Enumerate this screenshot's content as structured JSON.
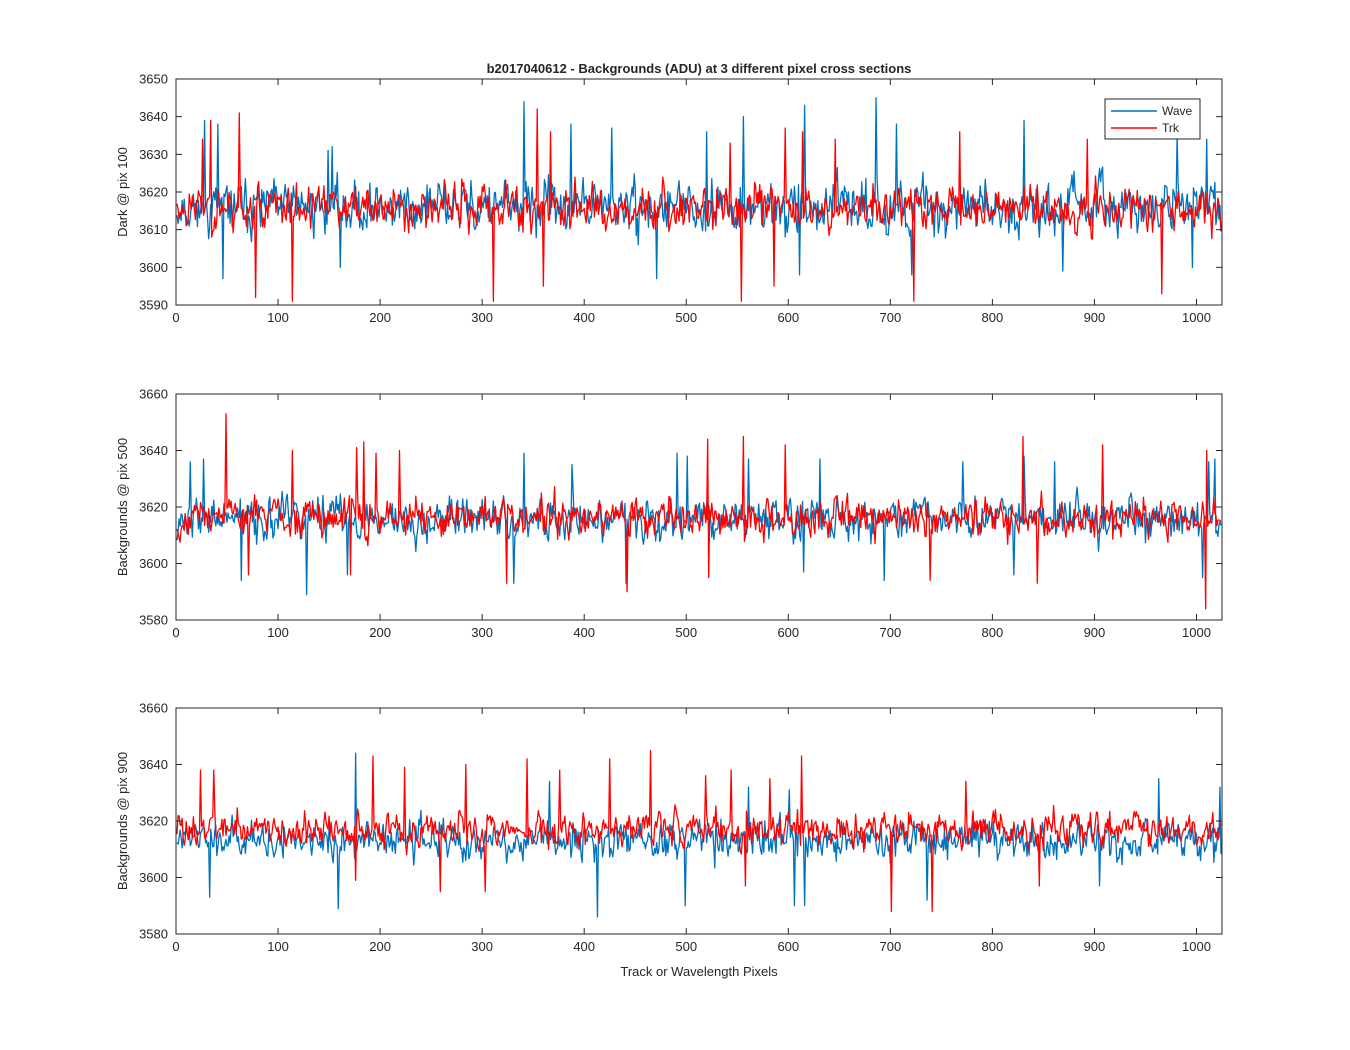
{
  "figure": {
    "title": "b2017040612 - Backgrounds (ADU) at 3 different pixel cross sections",
    "xlabel": "Track or Wavelength Pixels"
  },
  "legend": {
    "position": "top-right",
    "entries": [
      {
        "name": "Wave",
        "color": "#0072BD"
      },
      {
        "name": "Trk",
        "color": "#FF0000"
      }
    ]
  },
  "chart_data": [
    {
      "type": "line",
      "ylabel": "Dark @ pix 100",
      "xlim": [
        0,
        1025
      ],
      "ylim": [
        3590,
        3650
      ],
      "xticks": [
        0,
        100,
        200,
        300,
        400,
        500,
        600,
        700,
        800,
        900,
        1000
      ],
      "yticks": [
        3590,
        3600,
        3610,
        3620,
        3630,
        3640,
        3650
      ],
      "grid": false,
      "n_points": 1024,
      "series": [
        {
          "name": "Wave",
          "color": "#0072BD",
          "mean": 3616,
          "spread": 9,
          "seed": 11,
          "peaks": [
            [
              27,
              3639
            ],
            [
              40,
              3638
            ],
            [
              148,
              3631
            ],
            [
              152,
              3632
            ],
            [
              340,
              3644
            ],
            [
              386,
              3638
            ],
            [
              426,
              3637
            ],
            [
              519,
              3636
            ],
            [
              555,
              3640
            ],
            [
              615,
              3643
            ],
            [
              685,
              3645
            ],
            [
              705,
              3638
            ],
            [
              830,
              3639
            ],
            [
              980,
              3635
            ],
            [
              1009,
              3634
            ]
          ],
          "troughs": [
            [
              45,
              3597
            ],
            [
              160,
              3600
            ],
            [
              470,
              3597
            ],
            [
              610,
              3598
            ],
            [
              720,
              3598
            ],
            [
              868,
              3599
            ],
            [
              995,
              3600
            ]
          ]
        },
        {
          "name": "Trk",
          "color": "#FF0000",
          "mean": 3616,
          "spread": 8,
          "seed": 23,
          "peaks": [
            [
              25,
              3634
            ],
            [
              33,
              3639
            ],
            [
              61,
              3641
            ],
            [
              77,
              3639
            ],
            [
              353,
              3642
            ],
            [
              366,
              3636
            ],
            [
              542,
              3633
            ],
            [
              596,
              3637
            ],
            [
              613,
              3636
            ],
            [
              645,
              3634
            ],
            [
              722,
              3633
            ],
            [
              767,
              3636
            ],
            [
              892,
              3634
            ]
          ],
          "troughs": [
            [
              77,
              3592
            ],
            [
              113,
              3591
            ],
            [
              310,
              3591
            ],
            [
              359,
              3595
            ],
            [
              553,
              3591
            ],
            [
              585,
              3595
            ],
            [
              722,
              3591
            ],
            [
              965,
              3593
            ]
          ]
        }
      ]
    },
    {
      "type": "line",
      "ylabel": "Backgrounds @ pix 500",
      "xlim": [
        0,
        1025
      ],
      "ylim": [
        3580,
        3660
      ],
      "xticks": [
        0,
        100,
        200,
        300,
        400,
        500,
        600,
        700,
        800,
        900,
        1000
      ],
      "yticks": [
        3580,
        3600,
        3620,
        3640,
        3660
      ],
      "grid": false,
      "n_points": 1024,
      "series": [
        {
          "name": "Wave",
          "color": "#0072BD",
          "mean": 3616,
          "spread": 10,
          "seed": 37,
          "peaks": [
            [
              13,
              3636
            ],
            [
              26,
              3637
            ],
            [
              340,
              3639
            ],
            [
              387,
              3635
            ],
            [
              490,
              3639
            ],
            [
              500,
              3638
            ],
            [
              560,
              3637
            ],
            [
              630,
              3637
            ],
            [
              770,
              3636
            ],
            [
              830,
              3638
            ],
            [
              860,
              3636
            ],
            [
              1011,
              3636
            ],
            [
              1017,
              3637
            ]
          ],
          "troughs": [
            [
              63,
              3594
            ],
            [
              127,
              3589
            ],
            [
              167,
              3596
            ],
            [
              330,
              3593
            ],
            [
              440,
              3593
            ],
            [
              614,
              3597
            ],
            [
              693,
              3594
            ],
            [
              820,
              3596
            ],
            [
              1005,
              3595
            ]
          ]
        },
        {
          "name": "Trk",
          "color": "#FF0000",
          "mean": 3616,
          "spread": 9,
          "seed": 49,
          "peaks": [
            [
              48,
              3653
            ],
            [
              113,
              3640
            ],
            [
              176,
              3641
            ],
            [
              183,
              3643
            ],
            [
              195,
              3639
            ],
            [
              218,
              3640
            ],
            [
              520,
              3644
            ],
            [
              555,
              3645
            ],
            [
              596,
              3642
            ],
            [
              829,
              3645
            ],
            [
              907,
              3642
            ],
            [
              1009,
              3640
            ]
          ],
          "troughs": [
            [
              70,
              3596
            ],
            [
              170,
              3596
            ],
            [
              323,
              3593
            ],
            [
              441,
              3590
            ],
            [
              521,
              3595
            ],
            [
              738,
              3594
            ],
            [
              843,
              3593
            ],
            [
              1008,
              3584
            ]
          ]
        }
      ]
    },
    {
      "type": "line",
      "ylabel": "Backgrounds @ pix 900",
      "xlim": [
        0,
        1025
      ],
      "ylim": [
        3580,
        3660
      ],
      "xticks": [
        0,
        100,
        200,
        300,
        400,
        500,
        600,
        700,
        800,
        900,
        1000
      ],
      "yticks": [
        3580,
        3600,
        3620,
        3640,
        3660
      ],
      "grid": false,
      "n_points": 1024,
      "series": [
        {
          "name": "Wave",
          "color": "#0072BD",
          "mean": 3613,
          "spread": 9,
          "seed": 61,
          "peaks": [
            [
              175,
              3644
            ],
            [
              365,
              3634
            ],
            [
              412,
              3633
            ],
            [
              560,
              3632
            ],
            [
              600,
              3631
            ],
            [
              962,
              3635
            ],
            [
              1022,
              3632
            ]
          ],
          "troughs": [
            [
              32,
              3593
            ],
            [
              158,
              3589
            ],
            [
              412,
              3586
            ],
            [
              498,
              3590
            ],
            [
              605,
              3590
            ],
            [
              615,
              3590
            ],
            [
              735,
              3592
            ],
            [
              904,
              3597
            ]
          ]
        },
        {
          "name": "Trk",
          "color": "#FF0000",
          "mean": 3617,
          "spread": 8,
          "seed": 73,
          "peaks": [
            [
              23,
              3638
            ],
            [
              36,
              3638
            ],
            [
              192,
              3643
            ],
            [
              223,
              3639
            ],
            [
              283,
              3640
            ],
            [
              343,
              3642
            ],
            [
              375,
              3638
            ],
            [
              424,
              3642
            ],
            [
              464,
              3645
            ],
            [
              518,
              3636
            ],
            [
              543,
              3638
            ],
            [
              581,
              3635
            ],
            [
              612,
              3643
            ],
            [
              773,
              3634
            ]
          ],
          "troughs": [
            [
              175,
              3599
            ],
            [
              258,
              3595
            ],
            [
              302,
              3595
            ],
            [
              557,
              3597
            ],
            [
              700,
              3588
            ],
            [
              740,
              3588
            ],
            [
              845,
              3597
            ]
          ]
        }
      ]
    }
  ]
}
